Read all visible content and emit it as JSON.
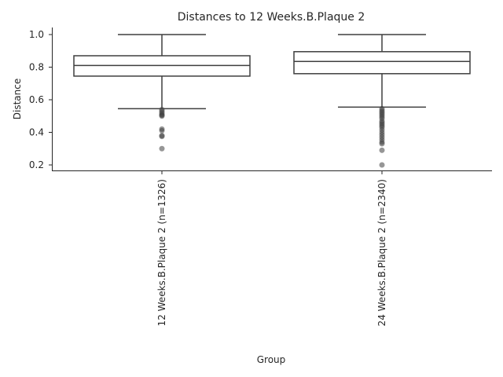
{
  "chart_data": {
    "type": "box",
    "title": "Distances to 12 Weeks.B.Plaque 2",
    "xlabel": "Group",
    "ylabel": "Distance",
    "ylim": [
      0.17,
      1.04
    ],
    "yticks": [
      0.2,
      0.4,
      0.6,
      0.8,
      1.0
    ],
    "ytick_labels": [
      "0.2",
      "0.4",
      "0.6",
      "0.8",
      "1.0"
    ],
    "grid": false,
    "categories": [
      "12 Weeks.B.Plaque 2 (n=1326)",
      "24 Weeks.B.Plaque 2 (n=2340)"
    ],
    "boxes": [
      {
        "label": "12 Weeks.B.Plaque 2 (n=1326)",
        "whisker_low": 0.545,
        "q1": 0.745,
        "median": 0.81,
        "q3": 0.87,
        "whisker_high": 1.0,
        "outliers": [
          0.54,
          0.53,
          0.52,
          0.51,
          0.505,
          0.5,
          0.42,
          0.41,
          0.38,
          0.375,
          0.3
        ]
      },
      {
        "label": "24 Weeks.B.Plaque 2 (n=2340)",
        "whisker_low": 0.555,
        "q1": 0.76,
        "median": 0.835,
        "q3": 0.895,
        "whisker_high": 1.0,
        "outliers": [
          0.545,
          0.535,
          0.525,
          0.515,
          0.505,
          0.495,
          0.485,
          0.47,
          0.46,
          0.45,
          0.44,
          0.43,
          0.415,
          0.4,
          0.385,
          0.37,
          0.355,
          0.34,
          0.33,
          0.29,
          0.2
        ]
      }
    ],
    "colors": {
      "box_edge": "#3f3f3f",
      "box_fill": "#ffffff",
      "outlier": "#3f3f3f",
      "axis": "#262626"
    }
  }
}
